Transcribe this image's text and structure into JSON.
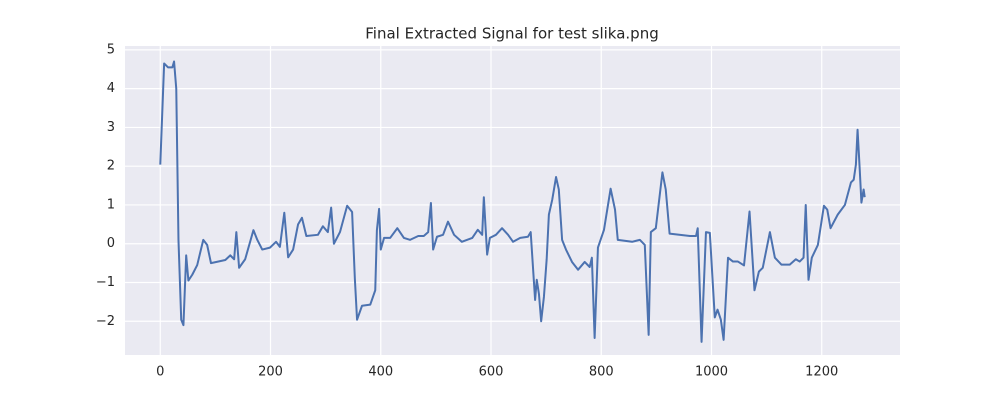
{
  "chart_data": {
    "type": "line",
    "title": "Final Extracted Signal for test slika.png",
    "x": [
      0,
      7,
      14,
      22,
      25,
      29,
      33,
      38,
      42,
      47,
      51,
      58,
      67,
      78,
      85,
      92,
      118,
      127,
      134,
      138,
      143,
      154,
      169,
      176,
      185,
      199,
      210,
      217,
      225,
      232,
      241,
      250,
      257,
      265,
      286,
      295,
      304,
      310,
      315,
      326,
      339,
      348,
      353,
      357,
      366,
      381,
      390,
      393,
      397,
      400,
      406,
      417,
      430,
      442,
      453,
      468,
      478,
      486,
      491,
      495,
      502,
      513,
      522,
      533,
      547,
      566,
      576,
      584,
      587,
      593,
      598,
      609,
      620,
      631,
      640,
      653,
      667,
      672,
      680,
      683,
      687,
      691,
      696,
      701,
      705,
      711,
      718,
      723,
      729,
      736,
      747,
      758,
      770,
      779,
      783,
      788,
      794,
      805,
      817,
      825,
      830,
      856,
      870,
      879,
      886,
      890,
      899,
      911,
      917,
      924,
      961,
      972,
      975,
      982,
      990,
      997,
      1006,
      1011,
      1017,
      1022,
      1030,
      1039,
      1048,
      1059,
      1069,
      1078,
      1086,
      1093,
      1106,
      1115,
      1127,
      1142,
      1153,
      1160,
      1167,
      1171,
      1176,
      1182,
      1193,
      1204,
      1210,
      1216,
      1229,
      1242,
      1253,
      1258,
      1262,
      1265,
      1269,
      1272,
      1276,
      1278
    ],
    "series": [
      {
        "color": "#4c72b0",
        "values": [
          2.04,
          4.65,
          4.55,
          4.55,
          4.7,
          4.0,
          0.1,
          -1.96,
          -2.1,
          -0.3,
          -0.95,
          -0.8,
          -0.55,
          0.1,
          -0.03,
          -0.5,
          -0.42,
          -0.3,
          -0.4,
          0.3,
          -0.62,
          -0.4,
          0.35,
          0.1,
          -0.15,
          -0.1,
          0.05,
          -0.08,
          0.8,
          -0.35,
          -0.15,
          0.5,
          0.67,
          0.2,
          0.23,
          0.45,
          0.3,
          0.93,
          0,
          0.3,
          0.98,
          0.82,
          -0.9,
          -1.96,
          -1.6,
          -1.57,
          -1.2,
          0.35,
          0.9,
          -0.15,
          0.15,
          0.15,
          0.4,
          0.15,
          0.1,
          0.2,
          0.2,
          0.3,
          1.05,
          -0.15,
          0.18,
          0.23,
          0.57,
          0.23,
          0.05,
          0.15,
          0.36,
          0.23,
          1.2,
          -0.28,
          0.15,
          0.23,
          0.4,
          0.23,
          0.05,
          0.15,
          0.18,
          0.3,
          -1.45,
          -0.93,
          -1.3,
          -2.0,
          -1.37,
          -0.4,
          0.75,
          1.13,
          1.72,
          1.4,
          0.1,
          -0.15,
          -0.47,
          -0.67,
          -0.47,
          -0.6,
          -0.36,
          -2.43,
          -0.1,
          0.36,
          1.42,
          0.88,
          0.1,
          0.05,
          0.1,
          -0.03,
          -2.35,
          0.3,
          0.4,
          1.84,
          1.4,
          0.26,
          0.2,
          0.2,
          0.4,
          -2.53,
          0.3,
          0.28,
          -1.9,
          -1.7,
          -1.96,
          -2.48,
          -0.36,
          -0.46,
          -0.46,
          -0.56,
          0.83,
          -1.2,
          -0.72,
          -0.62,
          0.3,
          -0.36,
          -0.54,
          -0.54,
          -0.4,
          -0.46,
          -0.36,
          1.0,
          -0.93,
          -0.36,
          -0.03,
          0.98,
          0.88,
          0.4,
          0.75,
          1.0,
          1.58,
          1.65,
          2.04,
          2.94,
          1.9,
          1.06,
          1.4,
          1.2
        ]
      }
    ],
    "xlim": [
      -64,
      1342
    ],
    "ylim": [
      -2.87,
      5.1
    ],
    "xticks": [
      0,
      200,
      400,
      600,
      800,
      1000,
      1200
    ],
    "yticks": [
      {
        "value": -2,
        "label": "−2"
      },
      {
        "value": -1,
        "label": "−1"
      },
      0,
      1,
      2,
      3,
      4,
      5
    ],
    "grid": true
  }
}
